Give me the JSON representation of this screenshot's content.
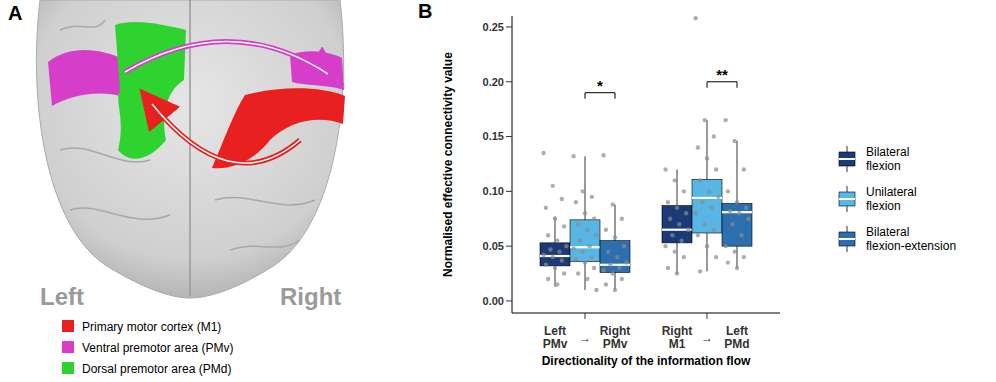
{
  "panel_a": {
    "panel_label": "A",
    "hemispheres": [
      "Left",
      "Right"
    ],
    "legend": [
      {
        "label": "Primary motor cortex (M1)",
        "color": "#e8201f"
      },
      {
        "label": "Ventral premotor area (PMv)",
        "color": "#d63ec9"
      },
      {
        "label": "Dorsal premotor area (PMd)",
        "color": "#2fd32f"
      }
    ]
  },
  "chart_data": {
    "type": "box",
    "panel_label": "B",
    "y_label": "Normalised effective connectivity value",
    "x_label": "Directionality of the information flow",
    "categories": [
      "Left PMv → Right PMv",
      "Right M1 → Left PMd"
    ],
    "ylim": [
      -0.011,
      0.26
    ],
    "yticks": [
      {
        "value": 0,
        "label": "0.00"
      },
      {
        "value": 0.05,
        "label": "0.05"
      },
      {
        "value": 0.1,
        "label": "0.10"
      },
      {
        "value": 0.15,
        "label": "0.15"
      },
      {
        "value": 0.2,
        "label": "0.20"
      },
      {
        "value": 0.25,
        "label": "0.25"
      }
    ],
    "legend": "right",
    "series": [
      {
        "name": "Bilateral flexion",
        "color": "#1b3a78",
        "boxes": [
          {
            "whisker_low": 0.013,
            "q1": 0.032,
            "median": 0.041,
            "q3": 0.053,
            "whisker_high": 0.077,
            "points": [
              0.135,
              0.105,
              0.093,
              0.085,
              0.075,
              0.068,
              0.06,
              0.055,
              0.05,
              0.047,
              0.045,
              0.042,
              0.04,
              0.037,
              0.033,
              0.03,
              0.025,
              0.02,
              0.015
            ]
          },
          {
            "whisker_low": 0.025,
            "q1": 0.053,
            "median": 0.065,
            "q3": 0.087,
            "whisker_high": 0.12,
            "points": [
              0.12,
              0.11,
              0.1,
              0.09,
              0.085,
              0.08,
              0.075,
              0.07,
              0.065,
              0.06,
              0.055,
              0.05,
              0.045,
              0.04,
              0.03,
              0.025
            ]
          }
        ]
      },
      {
        "name": "Unilateral flexion",
        "color": "#57b6e3",
        "boxes": [
          {
            "whisker_low": 0.01,
            "q1": 0.036,
            "median": 0.049,
            "q3": 0.074,
            "whisker_high": 0.132,
            "points": [
              0.132,
              0.1,
              0.095,
              0.09,
              0.08,
              0.075,
              0.07,
              0.065,
              0.06,
              0.055,
              0.05,
              0.048,
              0.045,
              0.04,
              0.038,
              0.035,
              0.03,
              0.025,
              0.02,
              0.01
            ]
          },
          {
            "whisker_low": 0.027,
            "q1": 0.062,
            "median": 0.094,
            "q3": 0.111,
            "whisker_high": 0.165,
            "points": [
              0.258,
              0.165,
              0.15,
              0.14,
              0.13,
              0.12,
              0.11,
              0.1,
              0.095,
              0.09,
              0.085,
              0.08,
              0.07,
              0.065,
              0.06,
              0.05,
              0.04,
              0.027
            ]
          }
        ]
      },
      {
        "name": "Bilateral flexion-extension",
        "color": "#2b6fae",
        "boxes": [
          {
            "whisker_low": 0.01,
            "q1": 0.026,
            "median": 0.033,
            "q3": 0.055,
            "whisker_high": 0.088,
            "points": [
              0.133,
              0.088,
              0.075,
              0.065,
              0.058,
              0.05,
              0.045,
              0.04,
              0.035,
              0.033,
              0.03,
              0.028,
              0.025,
              0.02,
              0.015,
              0.01
            ]
          },
          {
            "whisker_low": 0.03,
            "q1": 0.05,
            "median": 0.081,
            "q3": 0.089,
            "whisker_high": 0.146,
            "points": [
              0.165,
              0.146,
              0.12,
              0.1,
              0.09,
              0.085,
              0.082,
              0.08,
              0.075,
              0.07,
              0.06,
              0.05,
              0.045,
              0.04,
              0.035,
              0.03
            ]
          }
        ]
      }
    ],
    "annotations": [
      {
        "text": "*",
        "category": 0,
        "between": [
          1,
          2
        ],
        "y": 0.19
      },
      {
        "text": "**",
        "category": 1,
        "between": [
          1,
          2
        ],
        "y": 0.2
      }
    ]
  }
}
